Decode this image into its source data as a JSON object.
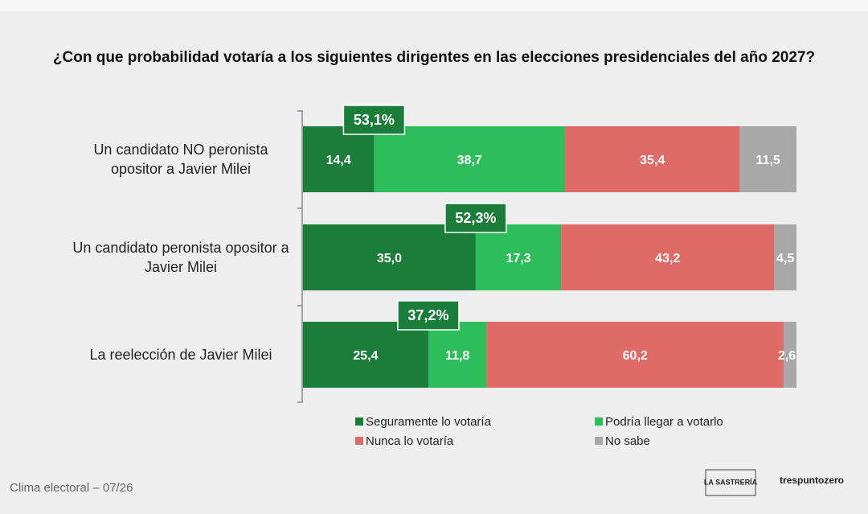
{
  "chart_data": {
    "type": "stacked-barh",
    "title": "¿Con que probabilidad votaría a los siguientes dirigentes en las elecciones presidenciales del año 2027?",
    "categories": [
      "Un candidato NO peronista opositor a Javier Milei",
      "Un candidato peronista opositor a Javier Milei",
      "La reelección de Javier Milei"
    ],
    "xlim": [
      0,
      100
    ],
    "series": [
      {
        "name": "Seguramente lo votaría",
        "color": "#1b7d3a",
        "values": [
          14.4,
          35.0,
          25.4
        ],
        "value_labels": [
          "14,4",
          "35,0",
          "25,4"
        ]
      },
      {
        "name": "Podría llegar a votarlo",
        "color": "#2dbd5a",
        "values": [
          38.7,
          17.3,
          11.8
        ],
        "value_labels": [
          "38,7",
          "17,3",
          "11,8"
        ]
      },
      {
        "name": "Nunca lo votaría",
        "color": "#e06a66",
        "values": [
          35.4,
          43.2,
          60.2
        ],
        "value_labels": [
          "35,4",
          "43,2",
          "60,2"
        ]
      },
      {
        "name": "No sabe",
        "color": "#a8a8a8",
        "values": [
          11.5,
          4.5,
          2.6
        ],
        "value_labels": [
          "11,5",
          "4,5",
          "2,6"
        ]
      }
    ],
    "annotations": [
      {
        "value": 53.1,
        "label": "53,1%"
      },
      {
        "value": 52.3,
        "label": "52,3%"
      },
      {
        "value": 37.2,
        "label": "37,2%"
      }
    ],
    "footer": "Clima electoral – 07/26",
    "logos": [
      "LA SASTRERÍA",
      "trespuntozero"
    ]
  }
}
